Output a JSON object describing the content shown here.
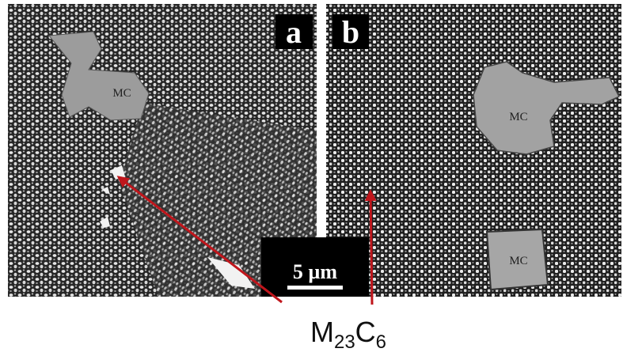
{
  "panels": [
    {
      "label": "a",
      "phases": [
        "MC"
      ]
    },
    {
      "label": "b",
      "phases": [
        "MC",
        "MC"
      ]
    }
  ],
  "scale_bar": "5 µm",
  "annotation": [
    "M",
    "23",
    "C",
    "6"
  ]
}
